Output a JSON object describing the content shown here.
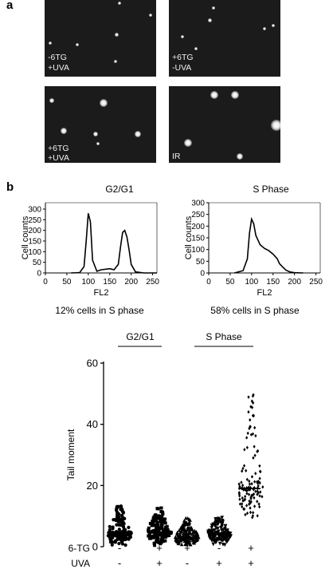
{
  "panel_a": {
    "letter": "a",
    "images": [
      {
        "label_line1": "-6TG",
        "label_line2": "+UVA"
      },
      {
        "label_line1": "+6TG",
        "label_line2": "-UVA"
      },
      {
        "label_line1": "+6TG",
        "label_line2": "+UVA"
      },
      {
        "label_line1": "IR",
        "label_line2": ""
      }
    ]
  },
  "panel_b": {
    "letter": "b",
    "histograms": [
      {
        "title": "G2/G1",
        "ylabel": "Cell counts",
        "xlabel": "FL2",
        "caption": "12% cells in S phase",
        "yticks": [
          "0",
          "50",
          "100",
          "150",
          "200",
          "250",
          "300"
        ],
        "xticks": [
          "0",
          "50",
          "100",
          "150",
          "200",
          "250"
        ]
      },
      {
        "title": "S Phase",
        "ylabel": "Cell counts",
        "xlabel": "FL2",
        "caption": "58% cells in S phase",
        "yticks": [
          "0",
          "50",
          "100",
          "150",
          "200",
          "250",
          "300"
        ],
        "xticks": [
          "0",
          "50",
          "100",
          "150",
          "200",
          "250"
        ]
      }
    ],
    "scatter": {
      "group_labels": [
        "G2/G1",
        "S Phase"
      ],
      "row_labels": [
        "6-TG",
        "UVA"
      ],
      "signs_6tg": [
        "-",
        "+",
        "+",
        "-",
        "+"
      ],
      "signs_uva": [
        "-",
        "+",
        "-",
        "+",
        "+"
      ]
    }
  },
  "chart_data": [
    {
      "type": "line",
      "title": "G2/G1",
      "xlabel": "FL2",
      "ylabel": "Cell counts",
      "xlim": [
        0,
        260
      ],
      "ylim": [
        0,
        330
      ],
      "series": [
        {
          "x": [
            60,
            80,
            90,
            95,
            100,
            105,
            110,
            120,
            130,
            150,
            160,
            170,
            175,
            180,
            185,
            190,
            195,
            200,
            210,
            230,
            260
          ],
          "y": [
            0,
            2,
            30,
            150,
            280,
            240,
            60,
            8,
            15,
            20,
            15,
            40,
            120,
            190,
            200,
            170,
            110,
            40,
            5,
            0,
            0
          ]
        }
      ]
    },
    {
      "type": "line",
      "title": "S Phase",
      "xlabel": "FL2",
      "ylabel": "Cell counts",
      "xlim": [
        0,
        260
      ],
      "ylim": [
        0,
        300
      ],
      "series": [
        {
          "x": [
            60,
            80,
            90,
            95,
            100,
            105,
            110,
            120,
            130,
            140,
            150,
            160,
            165,
            170,
            180,
            190,
            200,
            220
          ],
          "y": [
            0,
            10,
            60,
            170,
            230,
            210,
            160,
            120,
            105,
            95,
            80,
            60,
            40,
            30,
            12,
            4,
            1,
            0
          ]
        }
      ]
    },
    {
      "type": "scatter",
      "ylabel": "Tail moment",
      "ylim": [
        0,
        60
      ],
      "yticks": [
        0,
        20,
        40,
        60
      ],
      "groups": [
        {
          "median": 4.5,
          "min": 0.3,
          "max": 14,
          "marker": "circle"
        },
        {
          "median": 4.8,
          "min": 0.3,
          "max": 13,
          "marker": "square"
        },
        {
          "median": 3.0,
          "min": 0.2,
          "max": 9.5,
          "marker": "triangle-up"
        },
        {
          "median": 4.0,
          "min": 0.3,
          "max": 10,
          "marker": "triangle-down"
        },
        {
          "median": 19.0,
          "min": 8.0,
          "max": 51,
          "marker": "diamond"
        }
      ]
    }
  ]
}
